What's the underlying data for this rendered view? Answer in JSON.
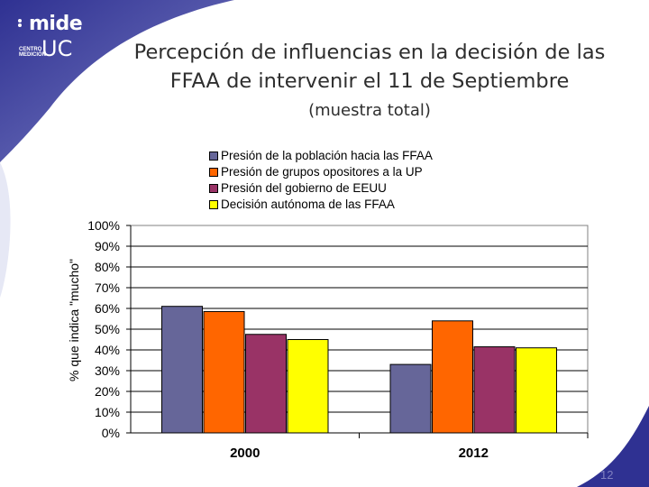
{
  "slide": {
    "title_line1": "Percepción de influencias en la decisión de las",
    "title_line2": "FFAA de intervenir el 11 de Septiembre",
    "subtitle": "(muestra total)",
    "page_number": "12"
  },
  "logo": {
    "mide": "mide",
    "centro": "CENTRO MEDICIÓN",
    "uc": "UC"
  },
  "colors": {
    "background_swoosh": "#2f3192",
    "text": "#2e2e2e"
  },
  "chart_data": {
    "type": "bar",
    "categories": [
      "2000",
      "2012"
    ],
    "ylabel": "% que indica \"mucho\"",
    "ylim": [
      0,
      100
    ],
    "yticks": [
      "0%",
      "10%",
      "20%",
      "30%",
      "40%",
      "50%",
      "60%",
      "70%",
      "80%",
      "90%",
      "100%"
    ],
    "grid": "horizontal",
    "legend_position": "top",
    "series": [
      {
        "name": "Presión de la población hacia las FFAA",
        "color": "#666699",
        "values": [
          61,
          33
        ]
      },
      {
        "name": "Presión de grupos opositores a la UP",
        "color": "#ff6600",
        "values": [
          58.5,
          54
        ]
      },
      {
        "name": "Presión del gobierno de EEUU",
        "color": "#993366",
        "values": [
          47.5,
          41.5
        ]
      },
      {
        "name": "Decisión autónoma de las FFAA",
        "color": "#ffff00",
        "values": [
          45,
          41
        ]
      }
    ]
  }
}
